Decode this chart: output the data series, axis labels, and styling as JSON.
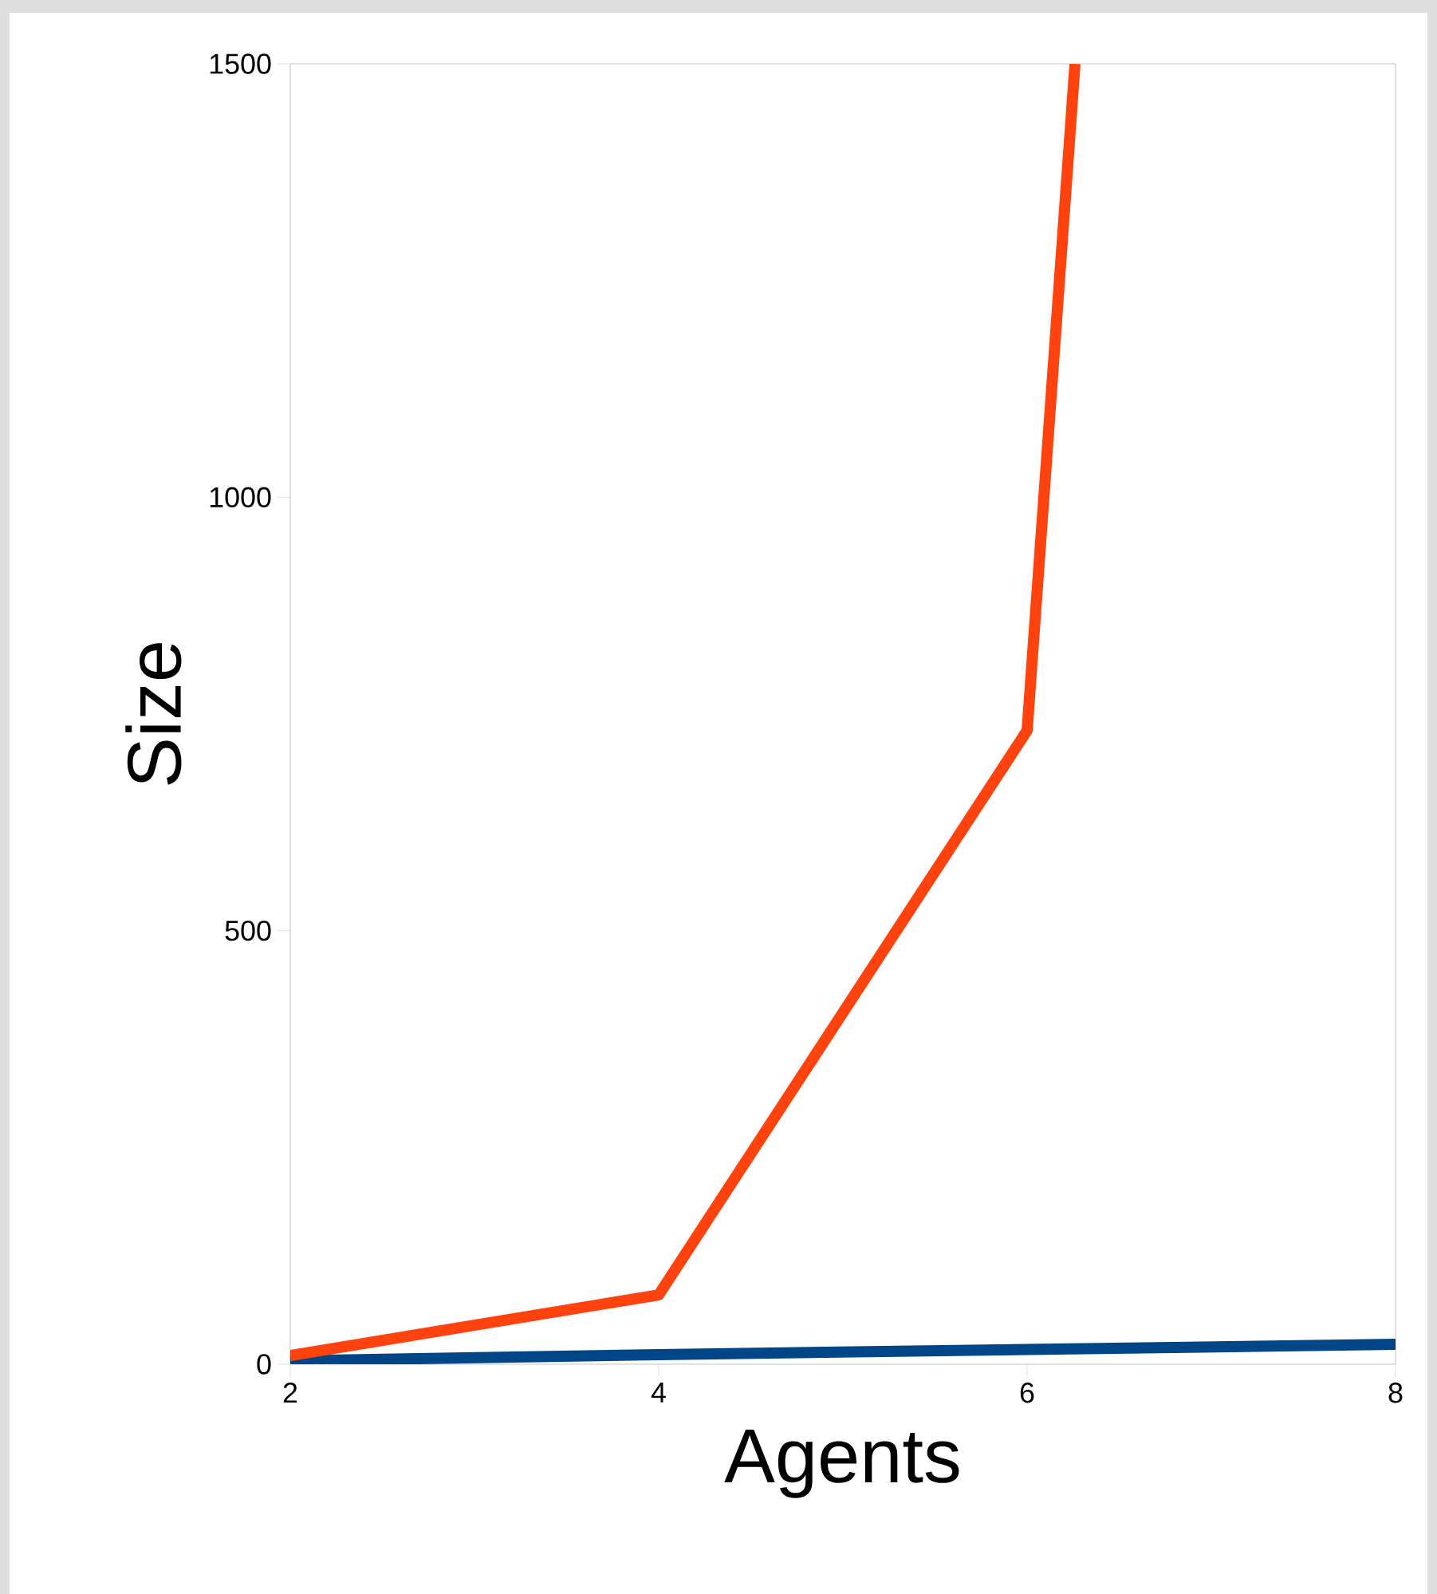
{
  "chart_data": {
    "type": "line",
    "xlabel": "Agents",
    "ylabel": "Size",
    "xlim": [
      2,
      8
    ],
    "ylim": [
      0,
      1500
    ],
    "xticks": [
      2,
      4,
      6,
      8
    ],
    "yticks": [
      0,
      500,
      1000,
      1500
    ],
    "marker": "none",
    "line_style": "solid",
    "x": [
      2,
      4,
      6,
      8
    ],
    "series": [
      {
        "color": "#004586",
        "values": [
          4,
          11,
          17,
          23
        ]
      },
      {
        "color": "#ff420e",
        "x": [
          2,
          4,
          6,
          6.26
        ],
        "values": [
          10,
          80,
          731,
          1500
        ]
      }
    ]
  }
}
